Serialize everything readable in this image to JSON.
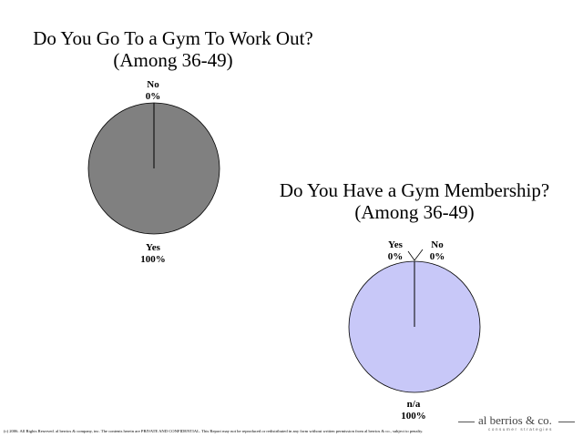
{
  "chart_data": [
    {
      "type": "pie",
      "title": "Do You Go To a Gym To Work Out?",
      "subtitle": "(Among 36-49)",
      "slices": [
        {
          "label": "Yes",
          "value": 100,
          "value_label": "100%",
          "color": "#808080"
        },
        {
          "label": "No",
          "value": 0,
          "value_label": "0%",
          "color": "#c0c0c0"
        }
      ]
    },
    {
      "type": "pie",
      "title": "Do You Have a Gym Membership?",
      "subtitle": "(Among 36-49)",
      "slices": [
        {
          "label": "n/a",
          "value": 100,
          "value_label": "100%",
          "color": "#c8c8f8"
        },
        {
          "label": "Yes",
          "value": 0,
          "value_label": "0%",
          "color": "#9999ff"
        },
        {
          "label": "No",
          "value": 0,
          "value_label": "0%",
          "color": "#6666cc"
        }
      ]
    }
  ],
  "footer": {
    "copyright": "(c) 2006. All Rights Reserved. al berrios & company, inc. The contents herein are PRIVATE AND CONFIDENTIAL. This Report may not be reproduced or redistributed in any form without written permission from al berrios & co., subject to penalty."
  },
  "logo": {
    "name": "al berrios & co.",
    "tagline": "consumer strategies"
  }
}
